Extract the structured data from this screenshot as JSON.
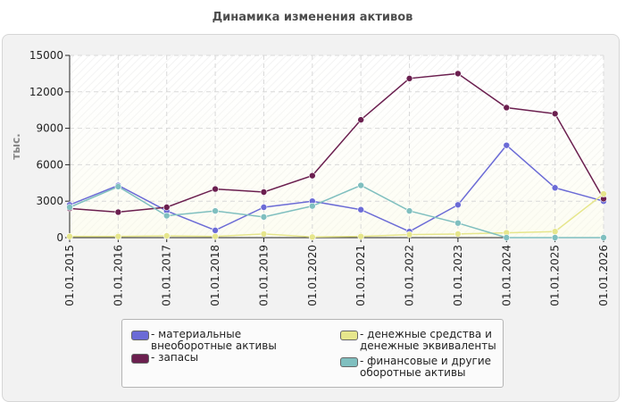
{
  "chart_data": {
    "type": "line",
    "title": "Динамика изменения активов",
    "ylabel": "тыс.",
    "xlabel": "",
    "ylim": [
      0,
      15000
    ],
    "yticks": [
      0,
      3000,
      6000,
      9000,
      12000,
      15000
    ],
    "categories": [
      "01.01.2015",
      "01.01.2016",
      "01.01.2017",
      "01.01.2018",
      "01.01.2019",
      "01.01.2020",
      "01.01.2021",
      "01.01.2022",
      "01.01.2023",
      "01.01.2024",
      "01.01.2025",
      "01.01.2026"
    ],
    "grid": true,
    "legend_position": "bottom",
    "series": [
      {
        "name": "- материальные внеоборотные активы",
        "color": "#6b6bd6",
        "values": [
          2700,
          4300,
          2200,
          600,
          2500,
          3000,
          2300,
          500,
          2700,
          7600,
          4100,
          3000
        ]
      },
      {
        "name": "- запасы",
        "color": "#6b1f4f",
        "values": [
          2400,
          2100,
          2500,
          4000,
          3750,
          5100,
          9700,
          13100,
          13500,
          10700,
          10200,
          3200
        ]
      },
      {
        "name": "- денежные средства и денежные эквиваленты",
        "color": "#e6e68c",
        "values": [
          100,
          100,
          150,
          100,
          300,
          50,
          100,
          250,
          300,
          400,
          500,
          3600
        ]
      },
      {
        "name": "- финансовые и другие оборотные активы",
        "color": "#7fbfbf",
        "values": [
          2500,
          4200,
          1800,
          2200,
          1700,
          2600,
          4300,
          2200,
          1200,
          0,
          0,
          0
        ]
      }
    ]
  }
}
